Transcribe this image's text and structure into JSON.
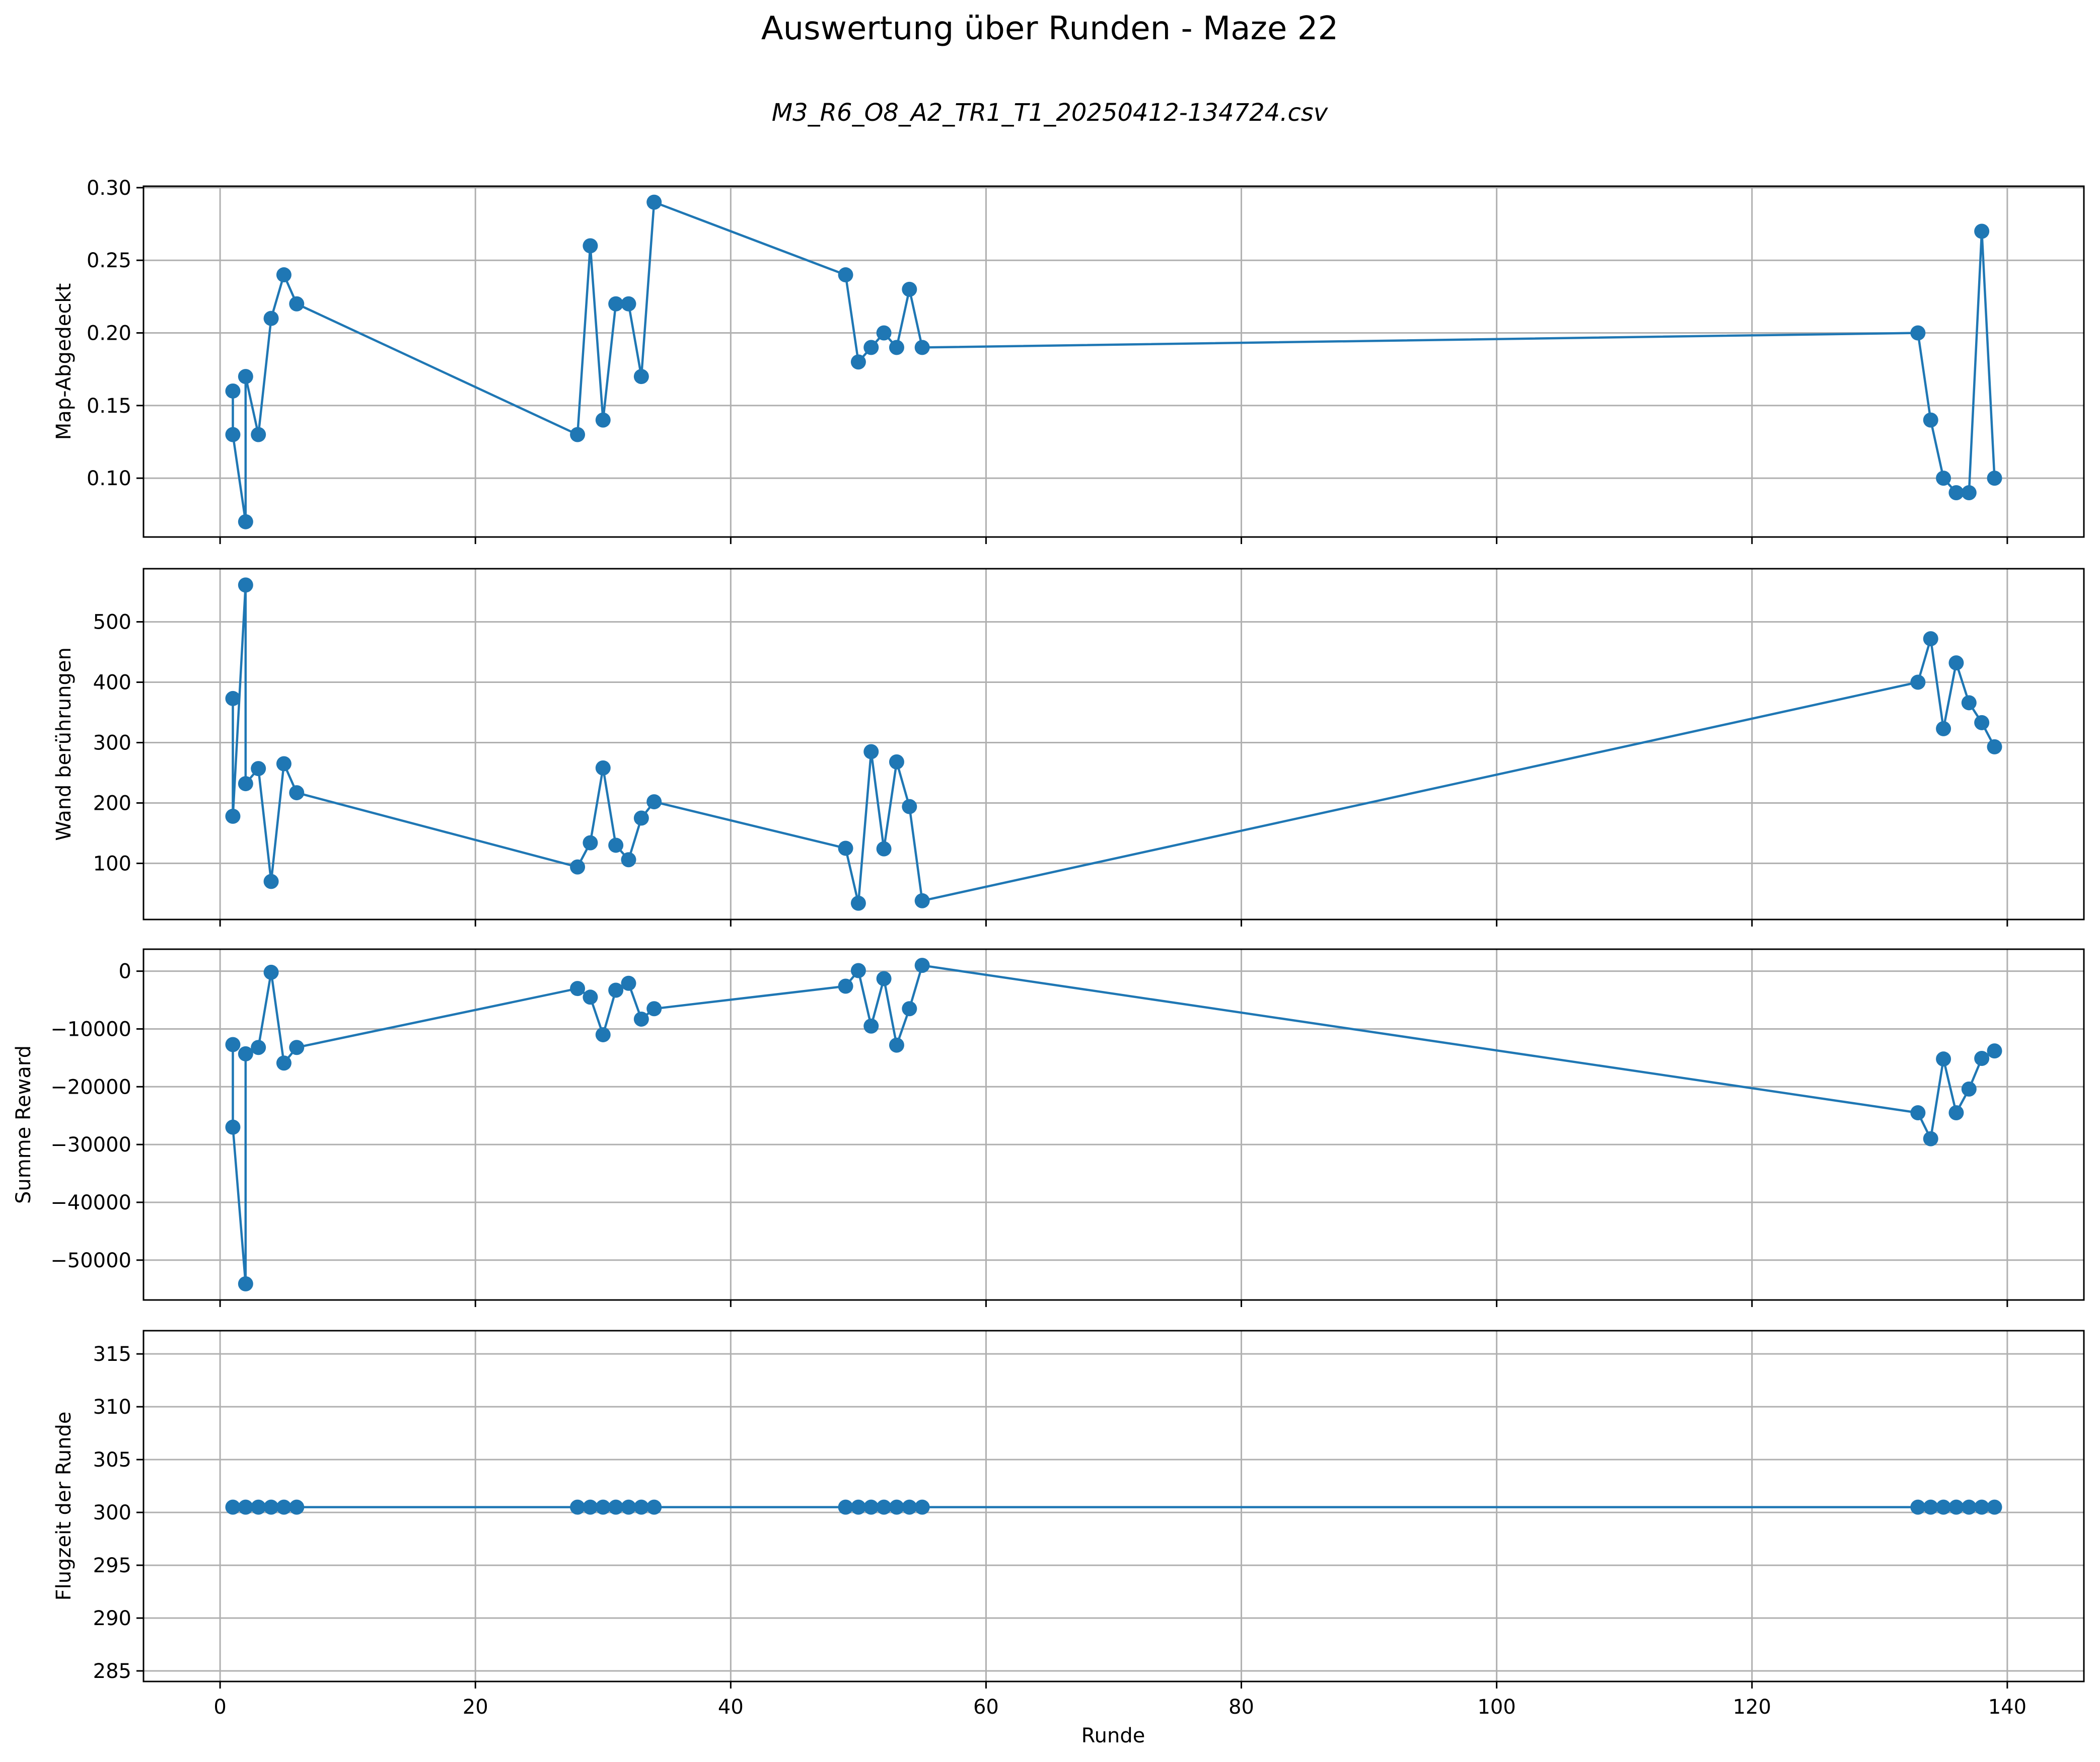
{
  "figure": {
    "title": "Auswertung über Runden - Maze 22",
    "subtitle": "M3_R6_O8_A2_TR1_T1_20250412-134724.csv",
    "xlabel": "Runde",
    "line_color": "#1f77b4"
  },
  "chart_data": [
    {
      "type": "line",
      "ylabel": "Map-Abgedeckt",
      "x": [
        1,
        1,
        2,
        2,
        3,
        4,
        5,
        6,
        28,
        29,
        30,
        31,
        32,
        33,
        34,
        49,
        50,
        51,
        52,
        53,
        54,
        55,
        133,
        134,
        135,
        136,
        137,
        138,
        139
      ],
      "values": [
        0.16,
        0.13,
        0.07,
        0.17,
        0.13,
        0.21,
        0.24,
        0.22,
        0.13,
        0.26,
        0.14,
        0.22,
        0.22,
        0.17,
        0.29,
        0.24,
        0.18,
        0.19,
        0.2,
        0.19,
        0.23,
        0.19,
        0.2,
        0.14,
        0.1,
        0.09,
        0.09,
        0.27,
        0.1
      ],
      "xlim": [
        -6,
        146
      ],
      "ylim": [
        0.0595,
        0.301
      ],
      "yticks": [
        0.1,
        0.15,
        0.2,
        0.25,
        0.3
      ],
      "ytick_labels": [
        "0.10",
        "0.15",
        "0.20",
        "0.25",
        "0.30"
      ],
      "grid": true
    },
    {
      "type": "line",
      "ylabel": "Wand berührungen",
      "x": [
        1,
        1,
        2,
        2,
        3,
        4,
        5,
        6,
        28,
        29,
        30,
        31,
        32,
        33,
        34,
        49,
        50,
        51,
        52,
        53,
        54,
        55,
        133,
        134,
        135,
        136,
        137,
        138,
        139
      ],
      "values": [
        373,
        178,
        561,
        232,
        257,
        70,
        265,
        217,
        94,
        134,
        258,
        130,
        106,
        175,
        202,
        125,
        34,
        285,
        124,
        268,
        194,
        38,
        400,
        472,
        323,
        432,
        366,
        333,
        293
      ],
      "xlim": [
        -6,
        146
      ],
      "ylim": [
        7,
        588
      ],
      "yticks": [
        100,
        200,
        300,
        400,
        500
      ],
      "ytick_labels": [
        "100",
        "200",
        "300",
        "400",
        "500"
      ],
      "grid": true
    },
    {
      "type": "line",
      "ylabel": "Summe Reward",
      "x": [
        1,
        1,
        2,
        2,
        3,
        4,
        5,
        6,
        28,
        29,
        30,
        31,
        32,
        33,
        34,
        49,
        50,
        51,
        52,
        53,
        54,
        55,
        133,
        134,
        135,
        136,
        137,
        138,
        139
      ],
      "values": [
        -12700,
        -27000,
        -54100,
        -14300,
        -13200,
        -200,
        -15900,
        -13200,
        -3000,
        -4500,
        -11000,
        -3300,
        -2100,
        -8300,
        -6500,
        -2600,
        100,
        -9500,
        -1300,
        -12800,
        -6500,
        1000,
        -24500,
        -29000,
        -15200,
        -24500,
        -20400,
        -15100,
        -13800
      ],
      "xlim": [
        -6,
        146
      ],
      "ylim": [
        -56900,
        3800
      ],
      "yticks": [
        0,
        -10000,
        -20000,
        -30000,
        -40000,
        -50000
      ],
      "ytick_labels": [
        "0",
        "−10000",
        "−20000",
        "−30000",
        "−40000",
        "−50000"
      ],
      "grid": true
    },
    {
      "type": "line",
      "ylabel": "Flugzeit der Runde",
      "x": [
        1,
        2,
        3,
        4,
        5,
        6,
        28,
        29,
        30,
        31,
        32,
        33,
        34,
        49,
        50,
        51,
        52,
        53,
        54,
        55,
        133,
        134,
        135,
        136,
        137,
        138,
        139
      ],
      "values": [
        300.5,
        300.5,
        300.5,
        300.5,
        300.5,
        300.5,
        300.5,
        300.5,
        300.5,
        300.5,
        300.5,
        300.5,
        300.5,
        300.5,
        300.5,
        300.5,
        300.5,
        300.5,
        300.5,
        300.5,
        300.5,
        300.5,
        300.5,
        300.5,
        300.5,
        300.5,
        300.5
      ],
      "xlim": [
        -6,
        146
      ],
      "ylim": [
        284.0,
        317.2
      ],
      "yticks": [
        285,
        290,
        295,
        300,
        305,
        310,
        315
      ],
      "ytick_labels": [
        "285",
        "290",
        "295",
        "300",
        "305",
        "310",
        "315"
      ],
      "xticks": [
        0,
        20,
        40,
        60,
        80,
        100,
        120,
        140
      ],
      "xtick_labels": [
        "0",
        "20",
        "40",
        "60",
        "80",
        "100",
        "120",
        "140"
      ],
      "grid": true
    }
  ]
}
